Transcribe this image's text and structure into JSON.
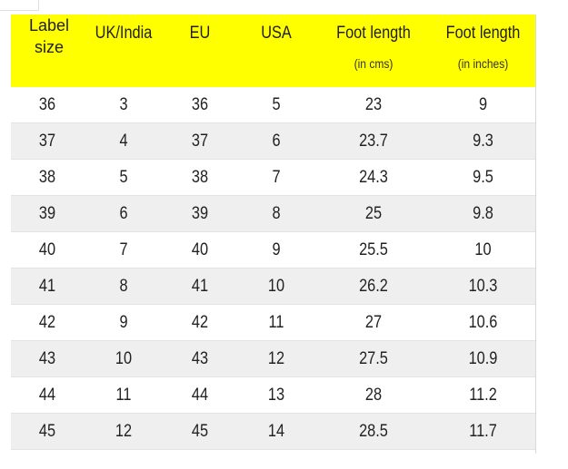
{
  "table": {
    "headers": [
      {
        "main": "Label size",
        "sub": ""
      },
      {
        "main": "UK/India",
        "sub": ""
      },
      {
        "main": "EU",
        "sub": ""
      },
      {
        "main": "USA",
        "sub": ""
      },
      {
        "main": "Foot length",
        "sub": "(in cms)"
      },
      {
        "main": "Foot length",
        "sub": "(in inches)"
      }
    ],
    "label_header_lines": [
      "Label",
      "size"
    ],
    "rows": [
      [
        "36",
        "3",
        "36",
        "5",
        "23",
        "9"
      ],
      [
        "37",
        "4",
        "37",
        "6",
        "23.7",
        "9.3"
      ],
      [
        "38",
        "5",
        "38",
        "7",
        "24.3",
        "9.5"
      ],
      [
        "39",
        "6",
        "39",
        "8",
        "25",
        "9.8"
      ],
      [
        "40",
        "7",
        "40",
        "9",
        "25.5",
        "10"
      ],
      [
        "41",
        "8",
        "41",
        "10",
        "26.2",
        "10.3"
      ],
      [
        "42",
        "9",
        "42",
        "11",
        "27",
        "10.6"
      ],
      [
        "43",
        "10",
        "43",
        "12",
        "27.5",
        "10.9"
      ],
      [
        "44",
        "11",
        "44",
        "13",
        "28",
        "11.2"
      ],
      [
        "45",
        "12",
        "45",
        "14",
        "28.5",
        "11.7"
      ]
    ],
    "colors": {
      "header_bg": "#ffff00",
      "alt_row_bg": "#efefef",
      "text": "#222222"
    }
  }
}
